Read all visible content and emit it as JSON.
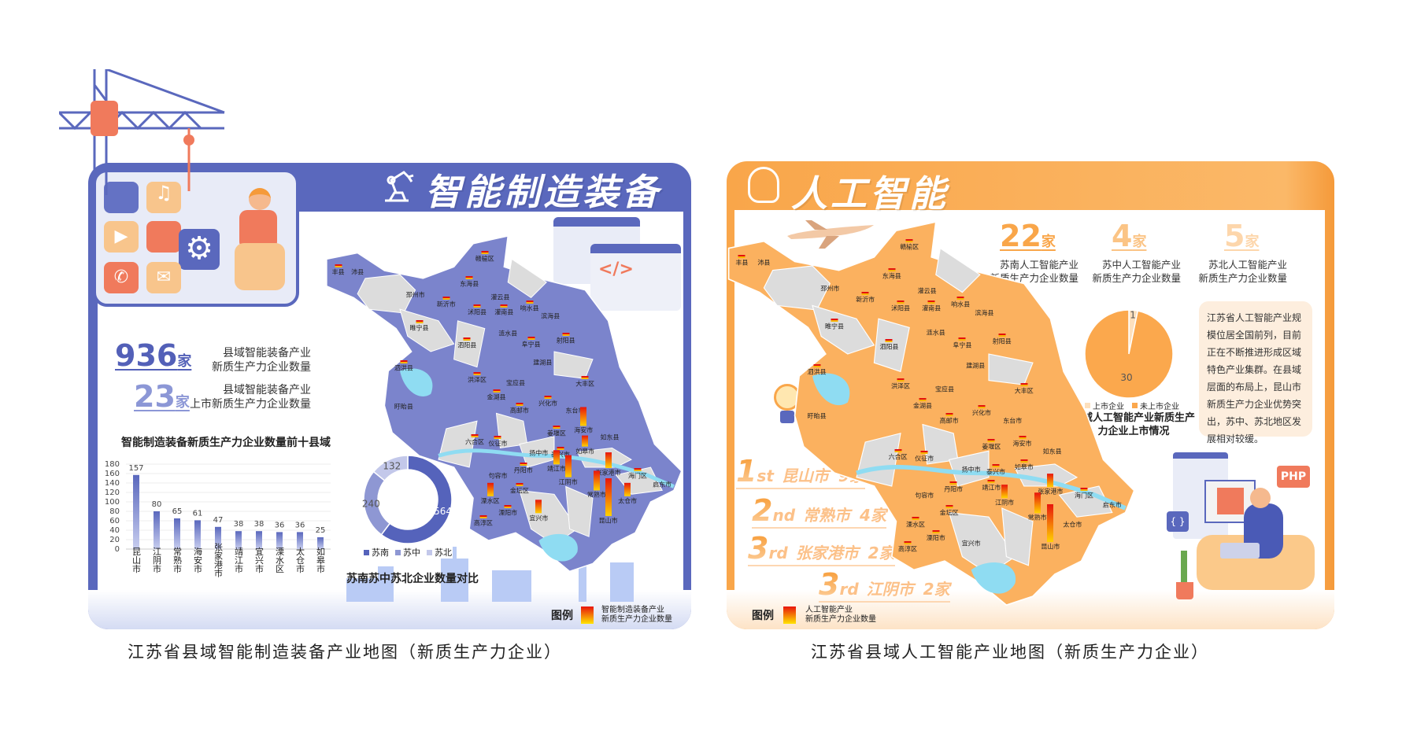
{
  "left_panel": {
    "title": "智能制造装备",
    "title_icon": "robot-arm-icon",
    "accent": "#5a68bd",
    "stat1": {
      "value": "936",
      "unit": "家",
      "label1": "县域智能装备产业",
      "label2": "新质生产力企业数量"
    },
    "stat2": {
      "value": "23",
      "unit": "家",
      "label1": "县域智能装备产业",
      "label2": "上市新质生产力企业数量"
    },
    "map_legend": {
      "title": "图例",
      "line1": "智能制造装备产业",
      "line2": "新质生产力企业数量"
    },
    "caption": "江苏省县域智能制造装备产业地图（新质生产力企业）"
  },
  "right_panel": {
    "title": "人工智能",
    "title_icon": "brain-chip-icon",
    "accent": "#f9a64a",
    "stats": [
      {
        "value": "22",
        "unit": "家",
        "label1": "苏南人工智能产业",
        "label2": "新质生产力企业数量"
      },
      {
        "value": "4",
        "unit": "家",
        "label1": "苏中人工智能产业",
        "label2": "新质生产力企业数量"
      },
      {
        "value": "5",
        "unit": "家",
        "label1": "苏北人工智能产业",
        "label2": "新质生产力企业数量"
      }
    ],
    "summary": "江苏省人工智能产业规模位居全国前列，目前正在不断推进形成区域特色产业集群。在县域层面的布局上，昆山市新质生产力企业优势突出，苏中、苏北地区发展相对较缓。",
    "rankings": [
      {
        "num": "1",
        "suffix": "st",
        "city": "昆山市",
        "count": "9家"
      },
      {
        "num": "2",
        "suffix": "nd",
        "city": "常熟市",
        "count": "4家"
      },
      {
        "num": "3",
        "suffix": "rd",
        "city": "张家港市",
        "count": "2家"
      },
      {
        "num": "3",
        "suffix": "rd",
        "city": "江阴市",
        "count": "2家"
      }
    ],
    "map_legend": {
      "title": "图例",
      "line1": "人工智能产业",
      "line2": "新质生产力企业数量"
    },
    "php_label": "PHP",
    "braces_label": "{ }",
    "caption": "江苏省县域人工智能产业地图（新质生产力企业）"
  },
  "map": {
    "counties": [
      "丰县",
      "沛县",
      "赣榆区",
      "东海县",
      "邳州市",
      "新沂市",
      "沭阳县",
      "灌云县",
      "灌南县",
      "响水县",
      "滨海县",
      "睢宁县",
      "泗阳县",
      "涟水县",
      "阜宁县",
      "射阳县",
      "建湖县",
      "泗洪县",
      "洪泽区",
      "宝应县",
      "大丰区",
      "金湖县",
      "盱眙县",
      "高邮市",
      "兴化市",
      "东台市",
      "海安市",
      "姜堰区",
      "如东县",
      "六合区",
      "仪征市",
      "扬中市",
      "泰兴市",
      "如皋市",
      "句容市",
      "丹阳市",
      "靖江市",
      "江阴市",
      "张家港市",
      "海门区",
      "启东市",
      "金坛区",
      "常熟市",
      "太仓市",
      "溧水区",
      "溧阳市",
      "宜兴市",
      "昆山市",
      "高淳区"
    ],
    "left_heat": {
      "昆山市": 157,
      "江阴市": 80,
      "常熟市": 65,
      "海安市": 61,
      "张家港市": 47,
      "靖江市": 38,
      "宜兴市": 38,
      "溧水区": 36,
      "太仓市": 36,
      "如皋市": 25
    },
    "right_heat": {
      "昆山市": 9,
      "常熟市": 4,
      "张家港市": 2,
      "江阴市": 2
    },
    "left_fill": "#7b84cc",
    "right_fill": "#fbb15f",
    "other_fill": "#dcdcdc",
    "water": "#8fdcf2"
  },
  "chart_data": [
    {
      "type": "bar",
      "title": "智能制造装备新质生产力企业数量前十县域",
      "categories": [
        "昆山市",
        "江阴市",
        "常熟市",
        "海安市",
        "张家港市",
        "靖江市",
        "宜兴市",
        "溧水区",
        "太仓市",
        "如皋市"
      ],
      "values": [
        157,
        80,
        65,
        61,
        47,
        38,
        38,
        36,
        36,
        25
      ],
      "ylim": [
        0,
        180
      ],
      "yticks": [
        0,
        20,
        40,
        60,
        80,
        100,
        120,
        140,
        160,
        180
      ],
      "grid": true,
      "color": "#5a68bd"
    },
    {
      "type": "pie",
      "donut": true,
      "title": "苏南苏中苏北企业数量对比",
      "labels": [
        "苏南",
        "苏中",
        "苏北"
      ],
      "values": [
        564,
        240,
        132
      ],
      "colors": [
        "#5563bb",
        "#8e97d3",
        "#c3c8ea"
      ],
      "legend": "bottom"
    },
    {
      "type": "pie",
      "title": "县域人工智能产业新质生产力企业上市情况",
      "labels": [
        "上市企业",
        "未上市企业"
      ],
      "values": [
        1,
        30
      ],
      "colors": [
        "#fde0bd",
        "#fba84d"
      ],
      "legend": "bottom"
    }
  ]
}
